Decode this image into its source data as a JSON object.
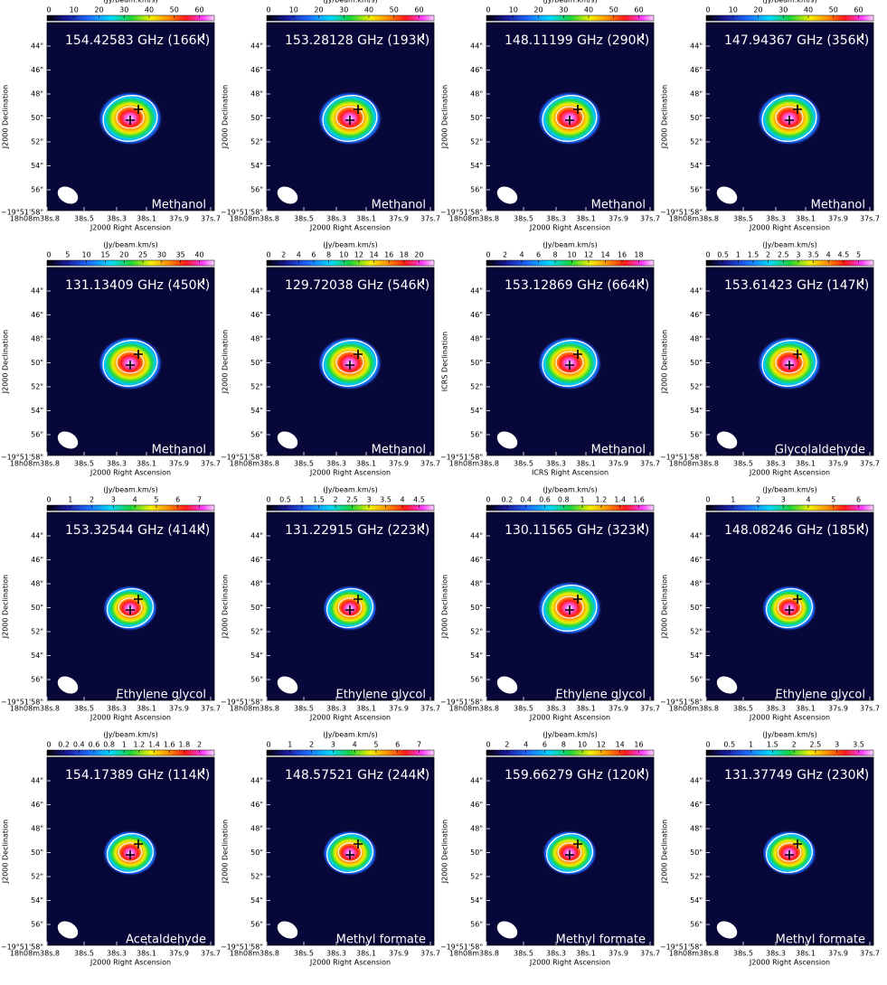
{
  "colorbar_label": "(Jy/beam.km/s)",
  "ra_ticks": [
    "18h08m38s.8",
    "38s.5",
    "38s.3",
    "38s.1",
    "37s.9",
    "37s.7"
  ],
  "dec_ticks": [
    "44\"",
    "46\"",
    "48\"",
    "50\"",
    "52\"",
    "54\"",
    "56\"",
    "−19°51'58\""
  ],
  "panels": [
    {
      "frequency": "154.42583 GHz (166K)",
      "molecule": "Methanol",
      "colorbar_ticks": [
        "0",
        "10",
        "20",
        "30",
        "40",
        "50",
        "60"
      ],
      "x_label": "J2000 Right Ascension",
      "y_label": "J2000 Declination"
    },
    {
      "frequency": "153.28128 GHz (193K)",
      "molecule": "Methanol",
      "colorbar_ticks": [
        "0",
        "10",
        "20",
        "30",
        "40",
        "50",
        "60"
      ],
      "x_label": "J2000 Right Ascension",
      "y_label": "J2000 Declination"
    },
    {
      "frequency": "148.11199 GHz (290K)",
      "molecule": "Methanol",
      "colorbar_ticks": [
        "0",
        "10",
        "20",
        "30",
        "40",
        "50",
        "60"
      ],
      "x_label": "J2000 Right Ascension",
      "y_label": "J2000 Declination"
    },
    {
      "frequency": "147.94367 GHz (356K)",
      "molecule": "Methanol",
      "colorbar_ticks": [
        "0",
        "10",
        "20",
        "30",
        "40",
        "50",
        "60"
      ],
      "x_label": "J2000 Right Ascension",
      "y_label": "J2000 Declination"
    },
    {
      "frequency": "131.13409 GHz (450K)",
      "molecule": "Methanol",
      "colorbar_ticks": [
        "0",
        "5",
        "10",
        "15",
        "20",
        "25",
        "30",
        "35",
        "40"
      ],
      "x_label": "J2000 Right Ascension",
      "y_label": "J2000 Declination"
    },
    {
      "frequency": "129.72038 GHz (546K)",
      "molecule": "Methanol",
      "colorbar_ticks": [
        "0",
        "2",
        "4",
        "6",
        "8",
        "10",
        "12",
        "14",
        "16",
        "18",
        "20"
      ],
      "x_label": "J2000 Right Ascension",
      "y_label": "J2000 Declination"
    },
    {
      "frequency": "153.12869 GHz (664K)",
      "molecule": "Methanol",
      "colorbar_ticks": [
        "0",
        "2",
        "4",
        "6",
        "8",
        "10",
        "12",
        "14",
        "16",
        "18"
      ],
      "x_label": "ICRS Right Ascension",
      "y_label": "ICRS Declination"
    },
    {
      "frequency": "153.61423 GHz (147K)",
      "molecule": "Glycolaldehyde",
      "colorbar_ticks": [
        "0",
        "0.5",
        "1",
        "1.5",
        "2",
        "2.5",
        "3",
        "3.5",
        "4",
        "4.5",
        "5"
      ],
      "x_label": "J2000 Right Ascension",
      "y_label": "J2000 Declination"
    },
    {
      "frequency": "153.32544 GHz (414K)",
      "molecule": "Ethylene glycol",
      "colorbar_ticks": [
        "0",
        "1",
        "2",
        "3",
        "4",
        "5",
        "6",
        "7"
      ],
      "x_label": "J2000 Right Ascension",
      "y_label": "J2000 Declination"
    },
    {
      "frequency": "131.22915 GHz (223K)",
      "molecule": "Ethylene glycol",
      "colorbar_ticks": [
        "0",
        "0.5",
        "1",
        "1.5",
        "2",
        "2.5",
        "3",
        "3.5",
        "4",
        "4.5"
      ],
      "x_label": "J2000 Right Ascension",
      "y_label": "J2000 Declination"
    },
    {
      "frequency": "130.11565 GHz (323K)",
      "molecule": "Ethylene glycol",
      "colorbar_ticks": [
        "0",
        "0.2",
        "0.4",
        "0.6",
        "0.8",
        "1",
        "1.2",
        "1.4",
        "1.6"
      ],
      "x_label": "J2000 Right Ascension",
      "y_label": "J2000 Declination"
    },
    {
      "frequency": "148.08246 GHz (185K)",
      "molecule": "Ethylene glycol",
      "colorbar_ticks": [
        "0",
        "1",
        "2",
        "3",
        "4",
        "5",
        "6"
      ],
      "x_label": "J2000 Right Ascension",
      "y_label": "J2000 Declination"
    },
    {
      "frequency": "154.17389 GHz (114K)",
      "molecule": "Acetaldehyde",
      "colorbar_ticks": [
        "0",
        "0.2",
        "0.4",
        "0.6",
        "0.8",
        "1",
        "1.2",
        "1.4",
        "1.6",
        "1.8",
        "2"
      ],
      "x_label": "J2000 Right Ascension",
      "y_label": "J2000 Declination"
    },
    {
      "frequency": "148.57521 GHz (244K)",
      "molecule": "Methyl formate",
      "colorbar_ticks": [
        "0",
        "1",
        "2",
        "3",
        "4",
        "5",
        "6",
        "7"
      ],
      "x_label": "J2000 Right Ascension",
      "y_label": "J2000 Declination"
    },
    {
      "frequency": "159.66279 GHz (120K)",
      "molecule": "Methyl formate",
      "colorbar_ticks": [
        "0",
        "2",
        "4",
        "6",
        "8",
        "10",
        "12",
        "14",
        "16"
      ],
      "x_label": "J2000 Right Ascension",
      "y_label": "J2000 Declination"
    },
    {
      "frequency": "131.37749 GHz (230K)",
      "molecule": "Methyl formate",
      "colorbar_ticks": [
        "0",
        "0.5",
        "1",
        "1.5",
        "2",
        "2.5",
        "3",
        "3.5"
      ],
      "x_label": "J2000 Right Ascension",
      "y_label": "J2000 Declination"
    }
  ]
}
